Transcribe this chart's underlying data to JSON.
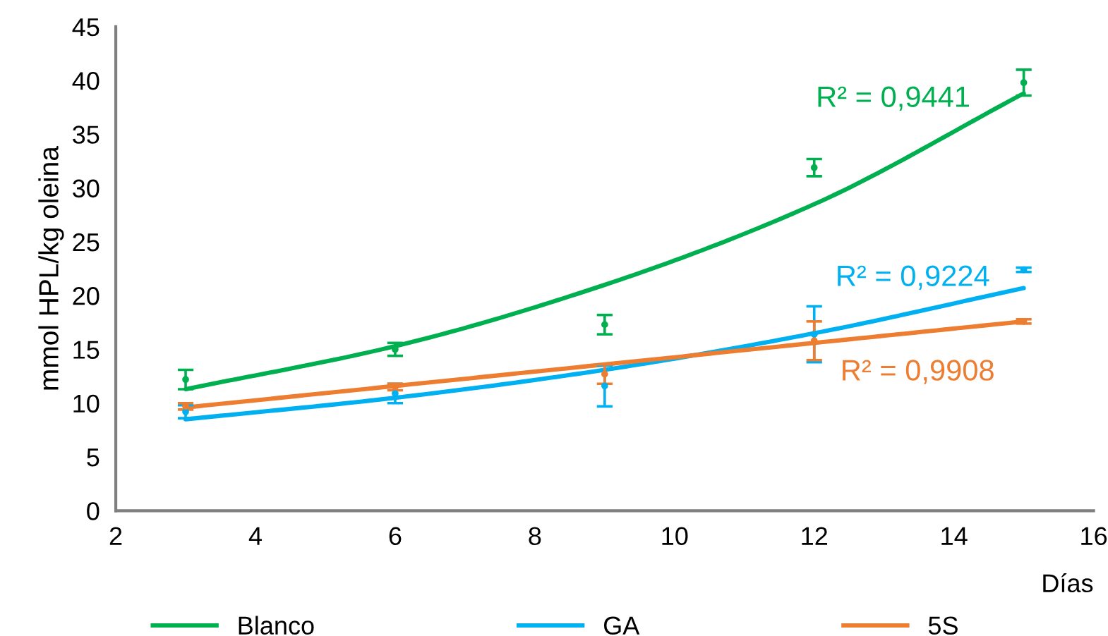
{
  "chart_data": {
    "type": "line",
    "xlabel": "Días",
    "ylabel": "mmol HPL/kg oleina",
    "xlim": [
      2,
      16
    ],
    "xticks": [
      2,
      4,
      6,
      8,
      10,
      12,
      14,
      16
    ],
    "ylim": [
      0,
      45
    ],
    "yticks": [
      0,
      5,
      10,
      15,
      20,
      25,
      30,
      35,
      40,
      45
    ],
    "grid": false,
    "legend": "bottom",
    "marker": "none",
    "line_style": "solid",
    "series": [
      {
        "name": "Blanco",
        "color": "#00b050",
        "x": [
          3,
          6,
          9,
          12,
          15
        ],
        "values": [
          11.3,
          15.3,
          21.0,
          28.5,
          38.8
        ]
      },
      {
        "name": "GA",
        "color": "#00b0f0",
        "x": [
          3,
          6,
          9,
          12,
          15
        ],
        "values": [
          8.5,
          10.5,
          13.1,
          16.5,
          20.7
        ]
      },
      {
        "name": "5S",
        "color": "#ed7d31",
        "x": [
          3,
          6,
          9,
          12,
          15
        ],
        "values": [
          9.6,
          11.6,
          13.6,
          15.6,
          17.6
        ]
      },
      {
        "type": "scatter",
        "marker": "circle",
        "color": "#00b050",
        "x": [
          3,
          6,
          9,
          12,
          15
        ],
        "values": [
          12.2,
          15.0,
          17.3,
          31.9,
          39.8
        ],
        "errors": [
          0.9,
          0.6,
          0.9,
          0.8,
          1.2
        ]
      },
      {
        "type": "scatter",
        "marker": "circle",
        "color": "#00b0f0",
        "x": [
          3,
          6,
          9,
          12,
          15
        ],
        "values": [
          9.2,
          10.9,
          11.6,
          16.4,
          22.4
        ],
        "errors": [
          0.6,
          0.9,
          1.9,
          2.6,
          0.2
        ]
      },
      {
        "type": "scatter",
        "marker": "circle",
        "color": "#ed7d31",
        "x": [
          3,
          6,
          9,
          12,
          15
        ],
        "values": [
          9.7,
          11.5,
          12.7,
          15.8,
          17.6
        ],
        "errors": [
          0.3,
          0.3,
          0.9,
          1.8,
          0.2
        ]
      }
    ],
    "annotations": [
      "R² = 0,9441",
      "R² = 0,9224",
      "R² = 0,9908"
    ]
  }
}
